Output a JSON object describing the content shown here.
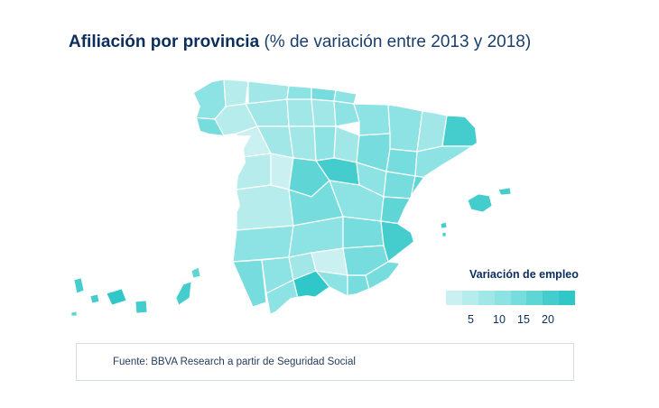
{
  "title": {
    "bold": "Afiliación por provincia",
    "light": "(% de variación entre 2013 y 2018)"
  },
  "legend": {
    "title": "Variación de empleo",
    "ticks": [
      "5",
      "10",
      "15",
      "20"
    ],
    "colors": [
      "#cbf0f1",
      "#b7eced",
      "#a2e7e8",
      "#8de2e3",
      "#77dcdd",
      "#5fd5d6",
      "#45cdce",
      "#2fc7c8"
    ]
  },
  "source": "Fuente: BBVA Research a partir de Seguridad Social",
  "colors": {
    "title": "#0b2e5c",
    "border": "#ffffff",
    "box_border": "#d7dbe2"
  }
}
